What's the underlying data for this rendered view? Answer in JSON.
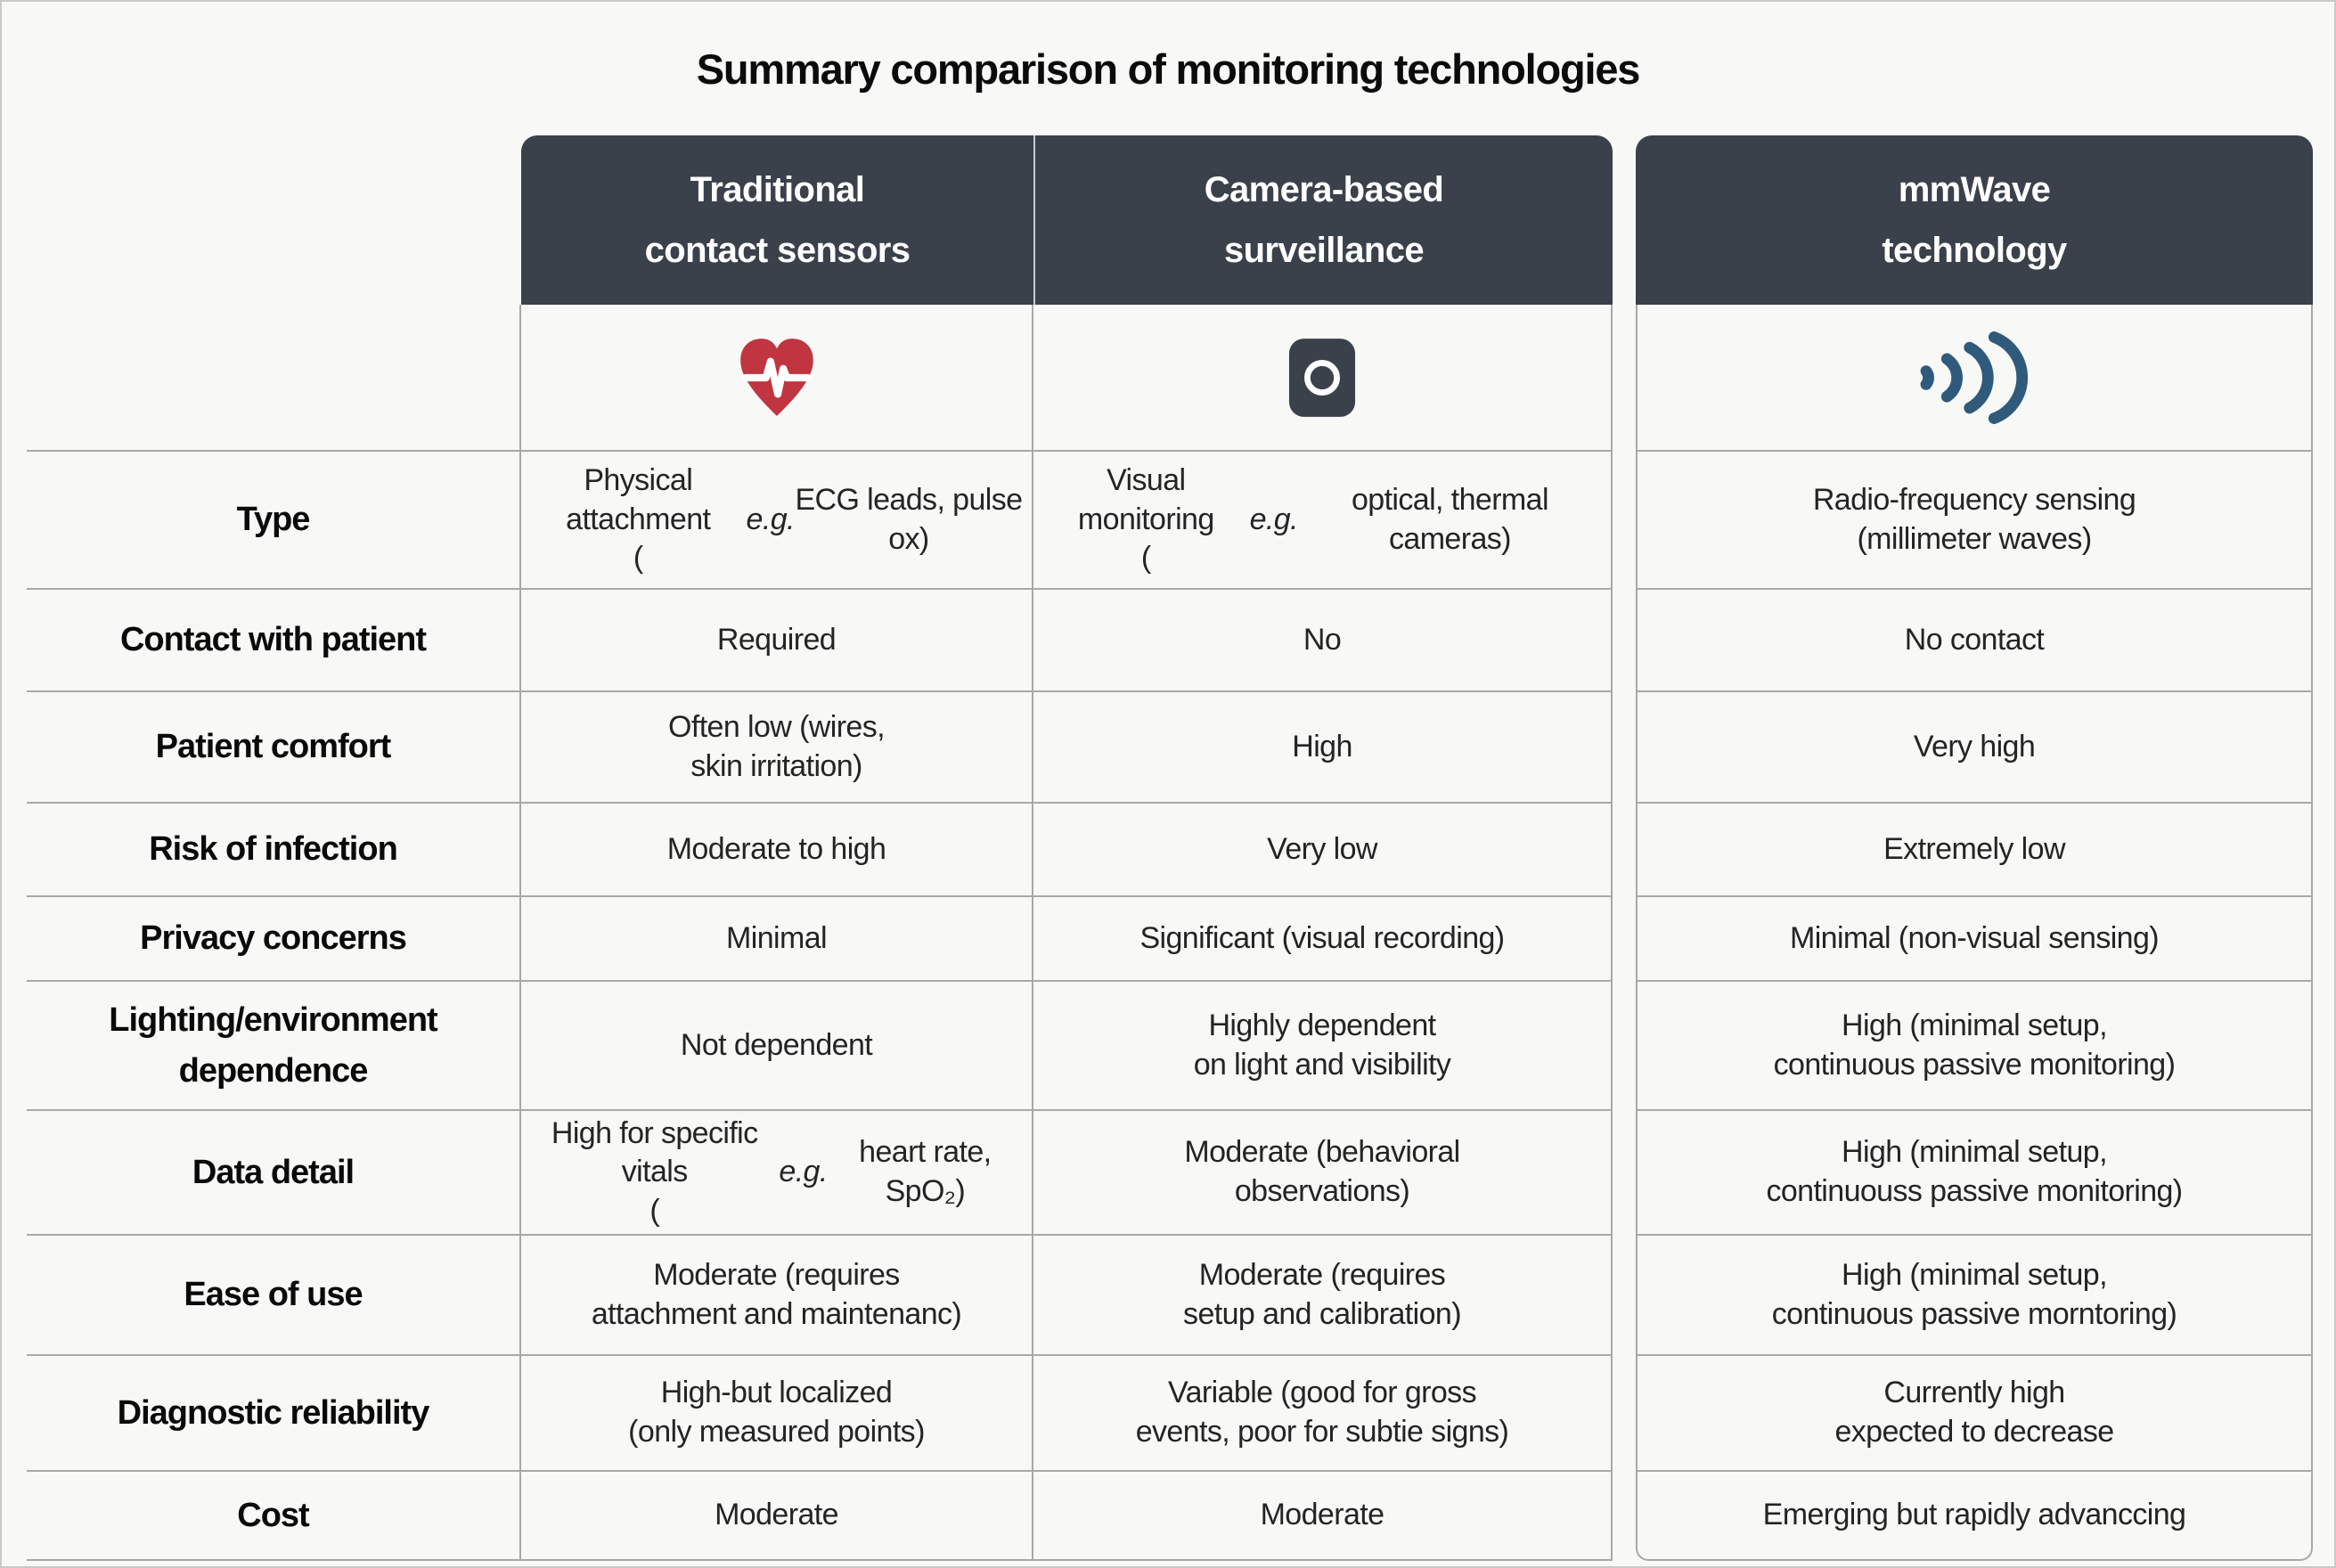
{
  "colors": {
    "header_bg": "#3a414b",
    "heart_red": "#c0353f",
    "camera_dark": "#3a414b",
    "wave_blue": "#2f5a7c",
    "grid_line": "#a8a8a8"
  },
  "chart_data": {
    "type": "table",
    "title": "Summary comparison of monitoring technologies",
    "columns": [
      {
        "header": "Traditional\ncontact sensors",
        "icon": "heart-pulse-icon"
      },
      {
        "header": "Camera-based\nsurveillance",
        "icon": "camera-icon"
      },
      {
        "header": "mmWave\ntechnology",
        "icon": "radio-waves-icon"
      }
    ],
    "rows": [
      {
        "label": "Type",
        "traditional": "Physical attachment\n(e.g. ECG leads, pulse ox)",
        "camera": "Visual monitoring\n(e.g. optical, thermal cameras)",
        "mmwave": "Radio-frequency sensing\n(millimeter waves)"
      },
      {
        "label": "Contact with patient",
        "traditional": "Required",
        "camera": "No",
        "mmwave": "No contact"
      },
      {
        "label": "Patient comfort",
        "traditional": "Often low (wires,\nskin irritation)",
        "camera": "High",
        "mmwave": "Very high"
      },
      {
        "label": "Risk of infection",
        "traditional": "Moderate to high",
        "camera": "Very low",
        "mmwave": "Extremely low"
      },
      {
        "label": "Privacy concerns",
        "traditional": "Minimal",
        "camera": "Significant (visual recording)",
        "mmwave": "Minimal (non-visual sensing)"
      },
      {
        "label": "Lighting/environment\ndependence",
        "traditional": "Not dependent",
        "camera": "Highly dependent\non light and visibility",
        "mmwave": "High (minimal setup,\ncontinuous passive monitoring)"
      },
      {
        "label": "Data detail",
        "traditional": "High for specific vitals\n(e.g. heart rate, SpO₂)",
        "camera": "Moderate (behavioral\nobservations)",
        "mmwave": "High (minimal setup,\ncontinuouss passive monitoring)"
      },
      {
        "label": "Ease of use",
        "traditional": "Moderate (requires\nattachment and maintenanc)",
        "camera": "Moderate (requires\nsetup and calibration)",
        "mmwave": "High (minimal setup,\ncontinuous passive morntoring)"
      },
      {
        "label": "Diagnostic reliability",
        "traditional": "High-but localized\n(only measured points)",
        "camera": "Variable (good for gross\nevents, poor for subtie signs)",
        "mmwave": "Currently high\nexpected to decrease"
      },
      {
        "label": "Cost",
        "traditional": "Moderate",
        "camera": "Moderate",
        "mmwave": "Emerging but rapidly advanccing"
      }
    ]
  }
}
